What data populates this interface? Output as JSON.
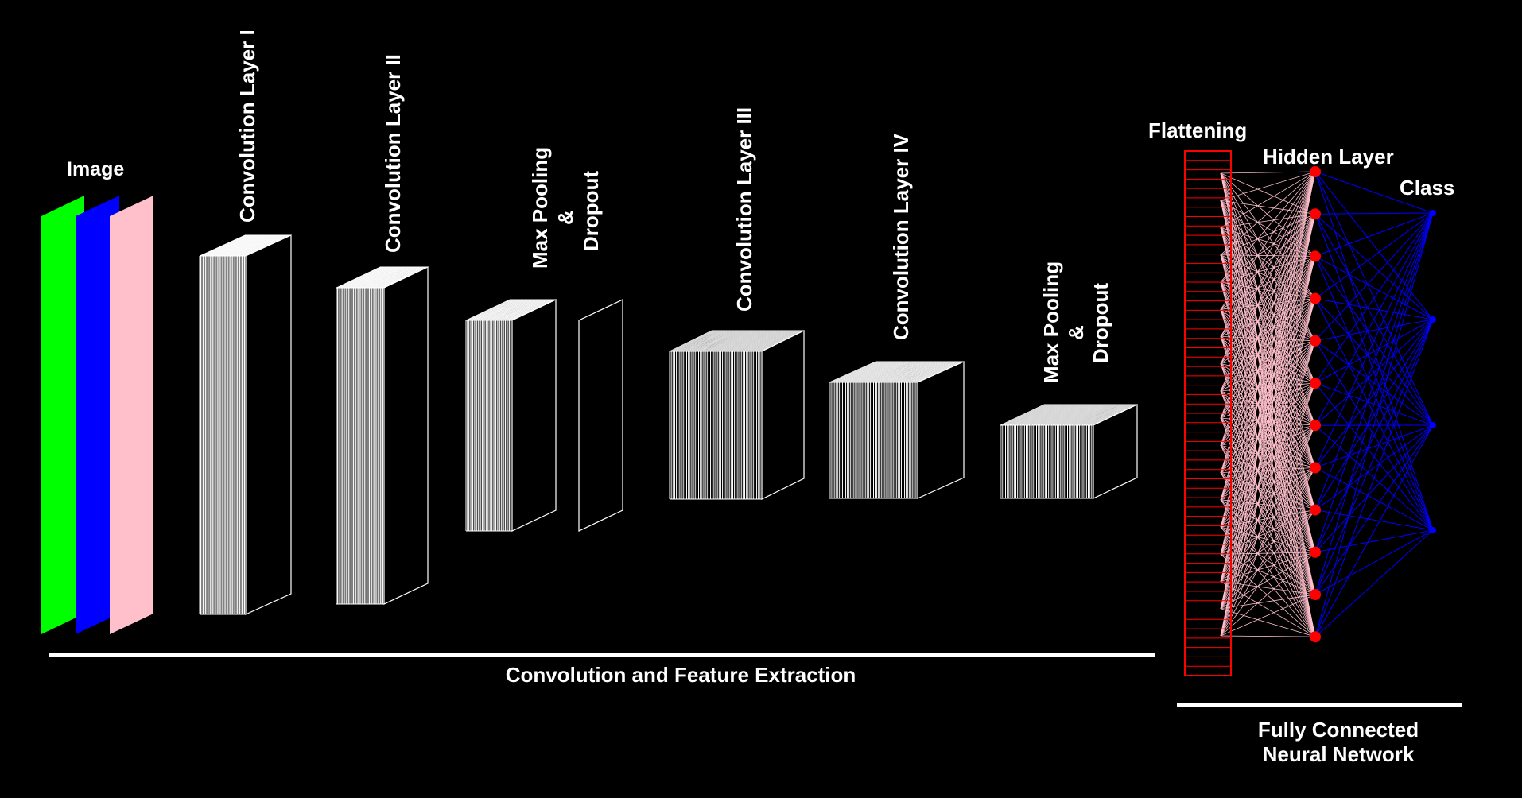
{
  "labels": {
    "image": "Image",
    "conv1": "Convolution Layer I",
    "conv2": "Convolution Layer II",
    "pool1_line1": "Max Pooling",
    "pool1_line2": "&",
    "pool1_line3": "Dropout",
    "conv3": "Convolution Layer III",
    "conv4": "Convolution Layer IV",
    "pool2_line1": "Max Pooling",
    "pool2_line2": "&",
    "pool2_line3": "Dropout",
    "flattening": "Flattening",
    "hidden": "Hidden Layer",
    "class": "Class",
    "feature_extraction": "Convolution and Feature Extraction",
    "fcn_line1": "Fully Connected",
    "fcn_line2": "Neural Network"
  },
  "colors": {
    "background": "#000000",
    "channel_red": "#00ff00",
    "channel_green": "#0000ff",
    "channel_blue": "#ffc0cb",
    "feature_map_stroke": "#ffffff",
    "flatten_stroke": "#ff0000",
    "flatten_to_hidden_lines": "#ffc0cb",
    "hidden_to_class_lines": "#0000ff",
    "hidden_nodes": "#ff0000",
    "class_nodes": "#0000ff"
  },
  "network": {
    "input_channels": 3,
    "hidden_nodes": 12,
    "class_nodes": 4,
    "flatten_units": 56
  }
}
